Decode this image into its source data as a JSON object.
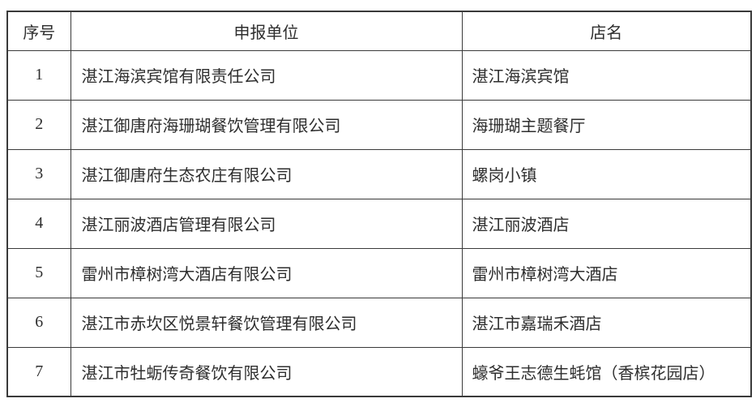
{
  "table": {
    "headers": [
      {
        "label": "序号"
      },
      {
        "label": "申报单位"
      },
      {
        "label": "店名"
      }
    ],
    "rows": [
      {
        "no": "1",
        "unit": "湛江海滨宾馆有限责任公司",
        "shop": "湛江海滨宾馆"
      },
      {
        "no": "2",
        "unit": "湛江御唐府海珊瑚餐饮管理有限公司",
        "shop": "海珊瑚主题餐厅"
      },
      {
        "no": "3",
        "unit": "湛江御唐府生态农庄有限公司",
        "shop": "螺岗小镇"
      },
      {
        "no": "4",
        "unit": "湛江丽波酒店管理有限公司",
        "shop": "湛江丽波酒店"
      },
      {
        "no": "5",
        "unit": "雷州市樟树湾大酒店有限公司",
        "shop": "雷州市樟树湾大酒店"
      },
      {
        "no": "6",
        "unit": "湛江市赤坎区悦景轩餐饮管理有限公司",
        "shop": "湛江市嘉瑞禾酒店"
      },
      {
        "no": "7",
        "unit": "湛江市牡蛎传奇餐饮有限公司",
        "shop": "蠔爷王志德生蚝馆（香槟花园店）"
      }
    ],
    "colors": {
      "border": "#3a3a3a",
      "text": "#2e2e2e",
      "background": "#ffffff"
    }
  }
}
